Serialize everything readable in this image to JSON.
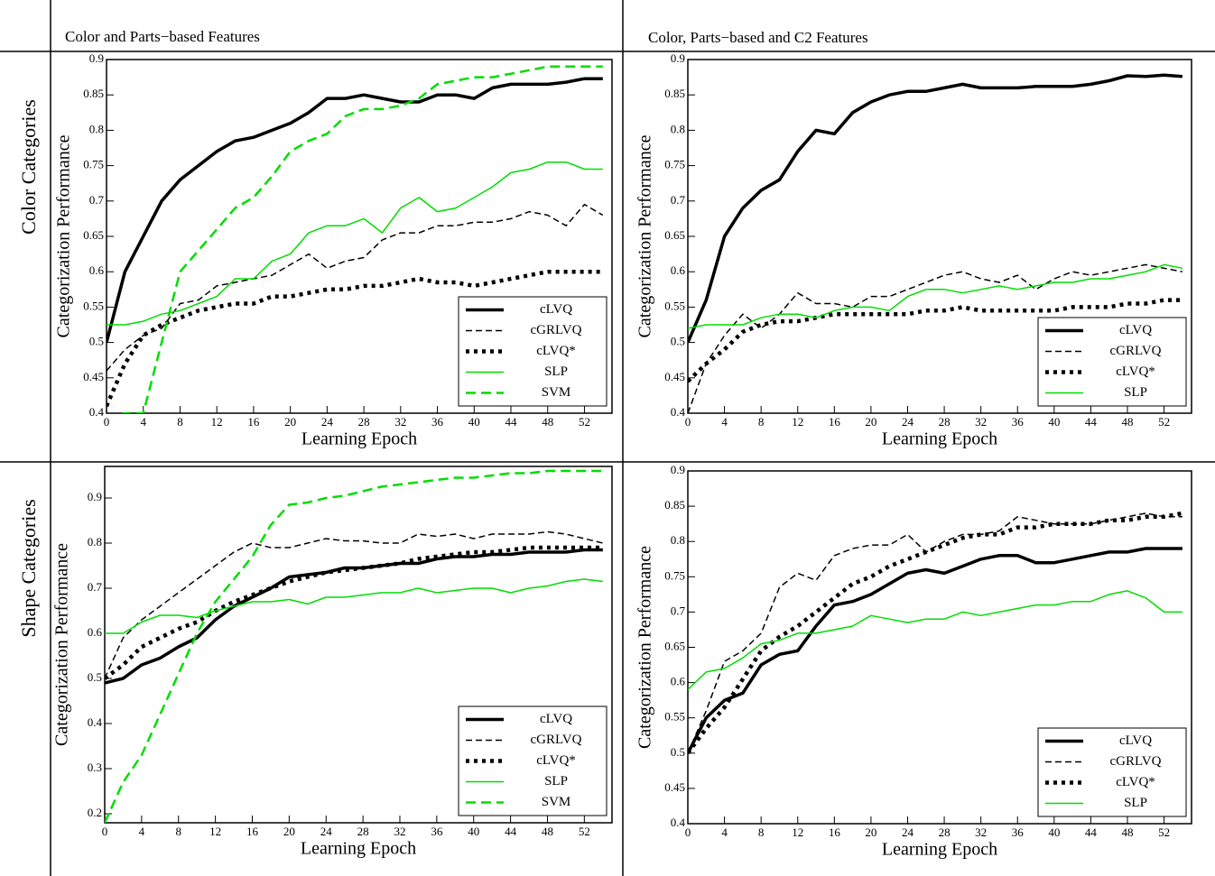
{
  "header": {
    "columns": [
      "Color and Parts−based Features",
      "Color, Parts−based and C2 Features"
    ],
    "rows": [
      "Color Categories",
      "Shape Categories"
    ]
  },
  "chart_data": [
    {
      "type": "line",
      "x_label": "Learning Epoch",
      "y_label": "Categorization Performance",
      "x": [
        0,
        2,
        4,
        6,
        8,
        10,
        12,
        14,
        16,
        18,
        20,
        22,
        24,
        26,
        28,
        30,
        32,
        34,
        36,
        38,
        40,
        42,
        44,
        46,
        48,
        50,
        52,
        54
      ],
      "xlim": [
        0,
        55
      ],
      "xticks": [
        0,
        4,
        8,
        12,
        16,
        20,
        24,
        28,
        32,
        36,
        40,
        44,
        48,
        52
      ],
      "ylim": [
        0.4,
        0.9
      ],
      "yticks": [
        0.4,
        0.45,
        0.5,
        0.55,
        0.6,
        0.65,
        0.7,
        0.75,
        0.8,
        0.85,
        0.9
      ],
      "series": [
        {
          "name": "cLVQ",
          "color": "#000000",
          "style": "solid-thick",
          "values": [
            0.5,
            0.6,
            0.65,
            0.7,
            0.73,
            0.75,
            0.77,
            0.785,
            0.79,
            0.8,
            0.81,
            0.825,
            0.845,
            0.845,
            0.85,
            0.845,
            0.84,
            0.84,
            0.85,
            0.85,
            0.845,
            0.86,
            0.865,
            0.865,
            0.865,
            0.868,
            0.873,
            0.873
          ]
        },
        {
          "name": "cGRLVQ",
          "color": "#000000",
          "style": "dashed",
          "values": [
            0.46,
            0.49,
            0.51,
            0.52,
            0.555,
            0.56,
            0.58,
            0.585,
            0.59,
            0.595,
            0.61,
            0.625,
            0.605,
            0.615,
            0.62,
            0.645,
            0.655,
            0.655,
            0.665,
            0.665,
            0.67,
            0.67,
            0.675,
            0.685,
            0.68,
            0.665,
            0.695,
            0.68
          ]
        },
        {
          "name": "cLVQ*",
          "color": "#000000",
          "style": "dotted",
          "values": [
            0.41,
            0.47,
            0.51,
            0.525,
            0.535,
            0.545,
            0.55,
            0.555,
            0.555,
            0.565,
            0.565,
            0.57,
            0.575,
            0.575,
            0.58,
            0.58,
            0.585,
            0.59,
            0.585,
            0.585,
            0.58,
            0.585,
            0.59,
            0.595,
            0.6,
            0.6,
            0.6,
            0.6
          ]
        },
        {
          "name": "SLP",
          "color": "#00dd00",
          "style": "solid",
          "values": [
            0.525,
            0.525,
            0.53,
            0.54,
            0.545,
            0.555,
            0.565,
            0.59,
            0.59,
            0.615,
            0.625,
            0.655,
            0.665,
            0.665,
            0.675,
            0.655,
            0.69,
            0.705,
            0.685,
            0.69,
            0.705,
            0.72,
            0.74,
            0.745,
            0.755,
            0.755,
            0.745,
            0.745
          ]
        },
        {
          "name": "SVM",
          "color": "#00dd00",
          "style": "dashed-thick",
          "values": [
            0.39,
            0.4,
            0.4,
            0.5,
            0.6,
            0.63,
            0.66,
            0.69,
            0.705,
            0.735,
            0.77,
            0.785,
            0.795,
            0.82,
            0.83,
            0.83,
            0.835,
            0.845,
            0.865,
            0.87,
            0.875,
            0.875,
            0.88,
            0.885,
            0.89,
            0.89,
            0.89,
            0.89
          ]
        }
      ]
    },
    {
      "type": "line",
      "x_label": "Learning Epoch",
      "y_label": "Categorization Performance",
      "x": [
        0,
        2,
        4,
        6,
        8,
        10,
        12,
        14,
        16,
        18,
        20,
        22,
        24,
        26,
        28,
        30,
        32,
        34,
        36,
        38,
        40,
        42,
        44,
        46,
        48,
        50,
        52,
        54
      ],
      "xlim": [
        0,
        55
      ],
      "xticks": [
        0,
        4,
        8,
        12,
        16,
        20,
        24,
        28,
        32,
        36,
        40,
        44,
        48,
        52
      ],
      "ylim": [
        0.4,
        0.9
      ],
      "yticks": [
        0.4,
        0.45,
        0.5,
        0.55,
        0.6,
        0.65,
        0.7,
        0.75,
        0.8,
        0.85,
        0.9
      ],
      "series": [
        {
          "name": "cLVQ",
          "color": "#000000",
          "style": "solid-thick",
          "values": [
            0.5,
            0.56,
            0.65,
            0.69,
            0.715,
            0.73,
            0.77,
            0.8,
            0.795,
            0.825,
            0.84,
            0.85,
            0.855,
            0.855,
            0.86,
            0.865,
            0.86,
            0.86,
            0.86,
            0.862,
            0.862,
            0.862,
            0.865,
            0.87,
            0.877,
            0.876,
            0.878,
            0.876
          ]
        },
        {
          "name": "cGRLVQ",
          "color": "#000000",
          "style": "dashed",
          "values": [
            0.4,
            0.47,
            0.51,
            0.54,
            0.52,
            0.54,
            0.57,
            0.555,
            0.555,
            0.55,
            0.565,
            0.565,
            0.575,
            0.585,
            0.595,
            0.6,
            0.59,
            0.585,
            0.595,
            0.575,
            0.59,
            0.6,
            0.595,
            0.6,
            0.605,
            0.61,
            0.605,
            0.6
          ]
        },
        {
          "name": "cLVQ*",
          "color": "#000000",
          "style": "dotted",
          "values": [
            0.445,
            0.47,
            0.49,
            0.515,
            0.525,
            0.53,
            0.53,
            0.535,
            0.54,
            0.54,
            0.54,
            0.54,
            0.54,
            0.545,
            0.545,
            0.55,
            0.545,
            0.545,
            0.545,
            0.545,
            0.545,
            0.55,
            0.55,
            0.55,
            0.555,
            0.555,
            0.56,
            0.56
          ]
        },
        {
          "name": "SLP",
          "color": "#00dd00",
          "style": "solid",
          "values": [
            0.52,
            0.525,
            0.525,
            0.525,
            0.535,
            0.54,
            0.54,
            0.535,
            0.545,
            0.55,
            0.55,
            0.545,
            0.565,
            0.575,
            0.575,
            0.57,
            0.575,
            0.58,
            0.575,
            0.58,
            0.585,
            0.585,
            0.59,
            0.59,
            0.595,
            0.6,
            0.61,
            0.605
          ]
        }
      ]
    },
    {
      "type": "line",
      "x_label": "Learning Epoch",
      "y_label": "Categorization Performance",
      "x": [
        0,
        2,
        4,
        6,
        8,
        10,
        12,
        14,
        16,
        18,
        20,
        22,
        24,
        26,
        28,
        30,
        32,
        34,
        36,
        38,
        40,
        42,
        44,
        46,
        48,
        50,
        52,
        54
      ],
      "xlim": [
        0,
        55
      ],
      "xticks": [
        0,
        4,
        8,
        12,
        16,
        20,
        24,
        28,
        32,
        36,
        40,
        44,
        48,
        52
      ],
      "ylim": [
        0.18,
        0.97
      ],
      "yticks": [
        0.2,
        0.3,
        0.4,
        0.5,
        0.6,
        0.7,
        0.8,
        0.9
      ],
      "series": [
        {
          "name": "cLVQ",
          "color": "#000000",
          "style": "solid-thick",
          "values": [
            0.49,
            0.5,
            0.53,
            0.545,
            0.57,
            0.59,
            0.63,
            0.66,
            0.68,
            0.7,
            0.725,
            0.73,
            0.735,
            0.745,
            0.745,
            0.75,
            0.755,
            0.755,
            0.765,
            0.77,
            0.77,
            0.775,
            0.775,
            0.78,
            0.78,
            0.78,
            0.785,
            0.785
          ]
        },
        {
          "name": "cGRLVQ",
          "color": "#000000",
          "style": "dashed",
          "values": [
            0.5,
            0.59,
            0.63,
            0.66,
            0.69,
            0.72,
            0.75,
            0.78,
            0.8,
            0.79,
            0.79,
            0.8,
            0.81,
            0.805,
            0.805,
            0.8,
            0.8,
            0.82,
            0.815,
            0.82,
            0.81,
            0.82,
            0.82,
            0.82,
            0.825,
            0.82,
            0.81,
            0.8
          ]
        },
        {
          "name": "cLVQ*",
          "color": "#000000",
          "style": "dotted",
          "values": [
            0.5,
            0.53,
            0.57,
            0.59,
            0.61,
            0.625,
            0.65,
            0.67,
            0.685,
            0.7,
            0.715,
            0.725,
            0.735,
            0.74,
            0.745,
            0.75,
            0.755,
            0.765,
            0.77,
            0.775,
            0.78,
            0.78,
            0.785,
            0.79,
            0.79,
            0.79,
            0.79,
            0.79
          ]
        },
        {
          "name": "SLP",
          "color": "#00dd00",
          "style": "solid",
          "values": [
            0.6,
            0.6,
            0.625,
            0.64,
            0.64,
            0.635,
            0.65,
            0.66,
            0.67,
            0.67,
            0.675,
            0.665,
            0.68,
            0.68,
            0.685,
            0.69,
            0.69,
            0.7,
            0.69,
            0.695,
            0.7,
            0.7,
            0.69,
            0.7,
            0.705,
            0.715,
            0.72,
            0.715
          ]
        },
        {
          "name": "SVM",
          "color": "#00dd00",
          "style": "dashed-thick",
          "values": [
            0.18,
            0.27,
            0.33,
            0.42,
            0.51,
            0.6,
            0.67,
            0.72,
            0.77,
            0.84,
            0.885,
            0.89,
            0.9,
            0.905,
            0.915,
            0.925,
            0.93,
            0.935,
            0.94,
            0.945,
            0.945,
            0.95,
            0.955,
            0.955,
            0.96,
            0.96,
            0.96,
            0.96
          ]
        }
      ]
    },
    {
      "type": "line",
      "x_label": "Learning Epoch",
      "y_label": "Categorization Performance",
      "x": [
        0,
        2,
        4,
        6,
        8,
        10,
        12,
        14,
        16,
        18,
        20,
        22,
        24,
        26,
        28,
        30,
        32,
        34,
        36,
        38,
        40,
        42,
        44,
        46,
        48,
        50,
        52,
        54
      ],
      "xlim": [
        0,
        55
      ],
      "xticks": [
        0,
        4,
        8,
        12,
        16,
        20,
        24,
        28,
        32,
        36,
        40,
        44,
        48,
        52
      ],
      "ylim": [
        0.4,
        0.9
      ],
      "yticks": [
        0.4,
        0.45,
        0.5,
        0.55,
        0.6,
        0.65,
        0.7,
        0.75,
        0.8,
        0.85,
        0.9
      ],
      "series": [
        {
          "name": "cLVQ",
          "color": "#000000",
          "style": "solid-thick",
          "values": [
            0.5,
            0.55,
            0.575,
            0.585,
            0.625,
            0.64,
            0.645,
            0.68,
            0.71,
            0.715,
            0.725,
            0.74,
            0.755,
            0.76,
            0.755,
            0.765,
            0.775,
            0.78,
            0.78,
            0.77,
            0.77,
            0.775,
            0.78,
            0.785,
            0.785,
            0.79,
            0.79,
            0.79
          ]
        },
        {
          "name": "cGRLVQ",
          "color": "#000000",
          "style": "dashed",
          "values": [
            0.5,
            0.56,
            0.63,
            0.645,
            0.67,
            0.735,
            0.755,
            0.745,
            0.78,
            0.79,
            0.795,
            0.795,
            0.81,
            0.785,
            0.8,
            0.81,
            0.81,
            0.815,
            0.835,
            0.83,
            0.825,
            0.825,
            0.825,
            0.83,
            0.835,
            0.84,
            0.835,
            0.835
          ]
        },
        {
          "name": "cLVQ*",
          "color": "#000000",
          "style": "dotted",
          "values": [
            0.5,
            0.535,
            0.565,
            0.605,
            0.645,
            0.665,
            0.68,
            0.7,
            0.72,
            0.74,
            0.75,
            0.765,
            0.775,
            0.785,
            0.795,
            0.805,
            0.81,
            0.81,
            0.82,
            0.82,
            0.825,
            0.825,
            0.825,
            0.83,
            0.83,
            0.835,
            0.835,
            0.84
          ]
        },
        {
          "name": "SLP",
          "color": "#00dd00",
          "style": "solid",
          "values": [
            0.59,
            0.615,
            0.62,
            0.635,
            0.655,
            0.66,
            0.67,
            0.67,
            0.675,
            0.68,
            0.695,
            0.69,
            0.685,
            0.69,
            0.69,
            0.7,
            0.695,
            0.7,
            0.705,
            0.71,
            0.71,
            0.715,
            0.715,
            0.725,
            0.73,
            0.72,
            0.7,
            0.7
          ]
        }
      ]
    }
  ]
}
